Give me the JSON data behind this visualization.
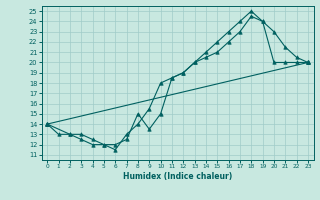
{
  "xlabel": "Humidex (Indice chaleur)",
  "bg_color": "#c8e8e0",
  "line_color": "#006060",
  "xlim": [
    -0.5,
    23.5
  ],
  "ylim": [
    10.5,
    25.5
  ],
  "xticks": [
    0,
    1,
    2,
    3,
    4,
    5,
    6,
    7,
    8,
    9,
    10,
    11,
    12,
    13,
    14,
    15,
    16,
    17,
    18,
    19,
    20,
    21,
    22,
    23
  ],
  "yticks": [
    11,
    12,
    13,
    14,
    15,
    16,
    17,
    18,
    19,
    20,
    21,
    22,
    23,
    24,
    25
  ],
  "line1_x": [
    0,
    1,
    2,
    3,
    4,
    5,
    6,
    7,
    8,
    9,
    10,
    11,
    12,
    13,
    14,
    15,
    16,
    17,
    18,
    19,
    20,
    21,
    22,
    23
  ],
  "line1_y": [
    14,
    13,
    13,
    12.5,
    12,
    12,
    11.5,
    13,
    14,
    15.5,
    18,
    18.5,
    19,
    20,
    20.5,
    21,
    22,
    23,
    24.5,
    24,
    20,
    20,
    20,
    20
  ],
  "line2_x": [
    0,
    2,
    3,
    4,
    5,
    6,
    7,
    8,
    9,
    10,
    11,
    12,
    13,
    14,
    15,
    16,
    17,
    18,
    19,
    20,
    21,
    22,
    23
  ],
  "line2_y": [
    14,
    13,
    13,
    12.5,
    12,
    12,
    12.5,
    15,
    13.5,
    15,
    18.5,
    19,
    20,
    21,
    22,
    23,
    24,
    25,
    24,
    23,
    21.5,
    20.5,
    20
  ],
  "line3_x": [
    0,
    23
  ],
  "line3_y": [
    14,
    20
  ]
}
